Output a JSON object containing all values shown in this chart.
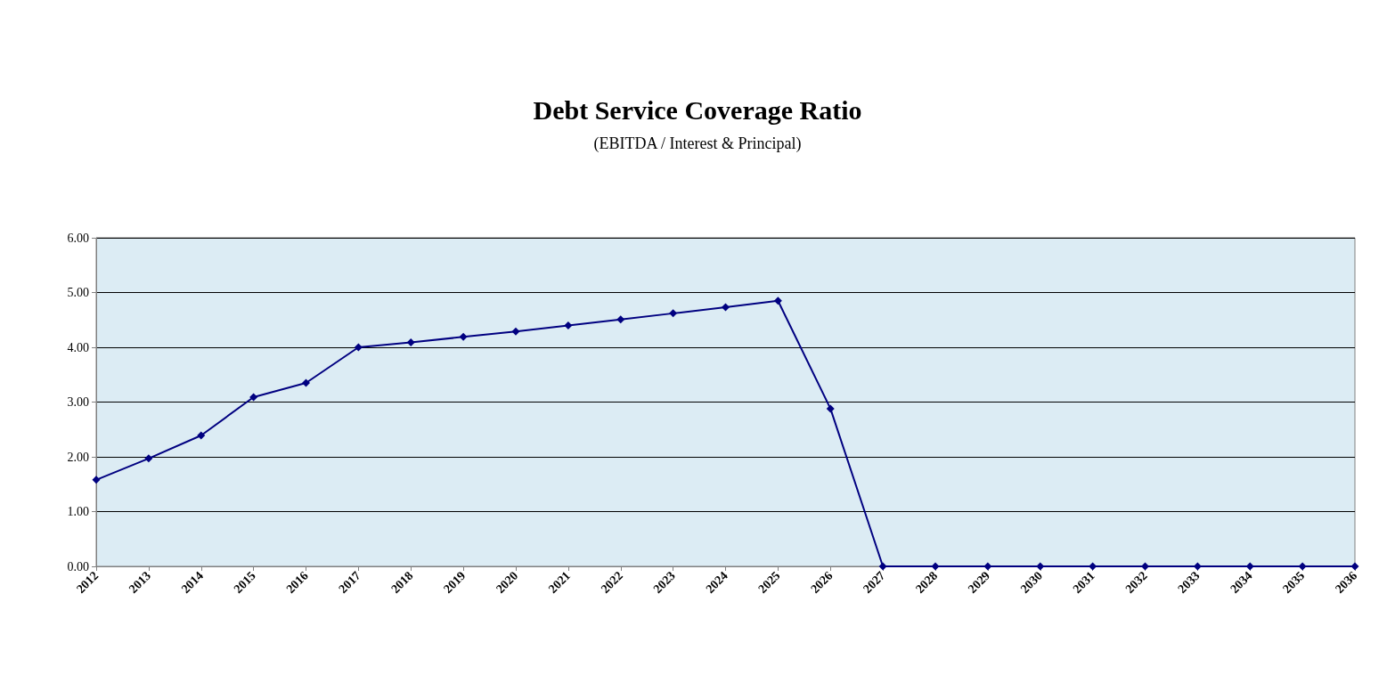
{
  "chart_data": {
    "type": "line",
    "title": "Debt Service Coverage Ratio",
    "subtitle": "(EBITDA / Interest & Principal)",
    "categories": [
      "2012",
      "2013",
      "2014",
      "2015",
      "2016",
      "2017",
      "2018",
      "2019",
      "2020",
      "2021",
      "2022",
      "2023",
      "2024",
      "2025",
      "2026",
      "2027",
      "2028",
      "2029",
      "2030",
      "2031",
      "2032",
      "2033",
      "2034",
      "2035",
      "2036"
    ],
    "series": [
      {
        "color": "#000080",
        "values": [
          1.58,
          1.97,
          2.39,
          3.09,
          3.35,
          4.0,
          4.09,
          4.19,
          4.29,
          4.4,
          4.51,
          4.62,
          4.73,
          4.85,
          2.88,
          0,
          0,
          0,
          0,
          0,
          0,
          0,
          0,
          0,
          0
        ]
      }
    ],
    "ylim": [
      0,
      6
    ],
    "yticks": [
      {
        "value": 0,
        "label": "0.00"
      },
      {
        "value": 1,
        "label": "1.00"
      },
      {
        "value": 2,
        "label": "2.00"
      },
      {
        "value": 3,
        "label": "3.00"
      },
      {
        "value": 4,
        "label": "4.00"
      },
      {
        "value": 5,
        "label": "5.00"
      },
      {
        "value": 6,
        "label": "6.00"
      }
    ],
    "grid": "y",
    "marker": "diamond",
    "line_style": "solid"
  }
}
